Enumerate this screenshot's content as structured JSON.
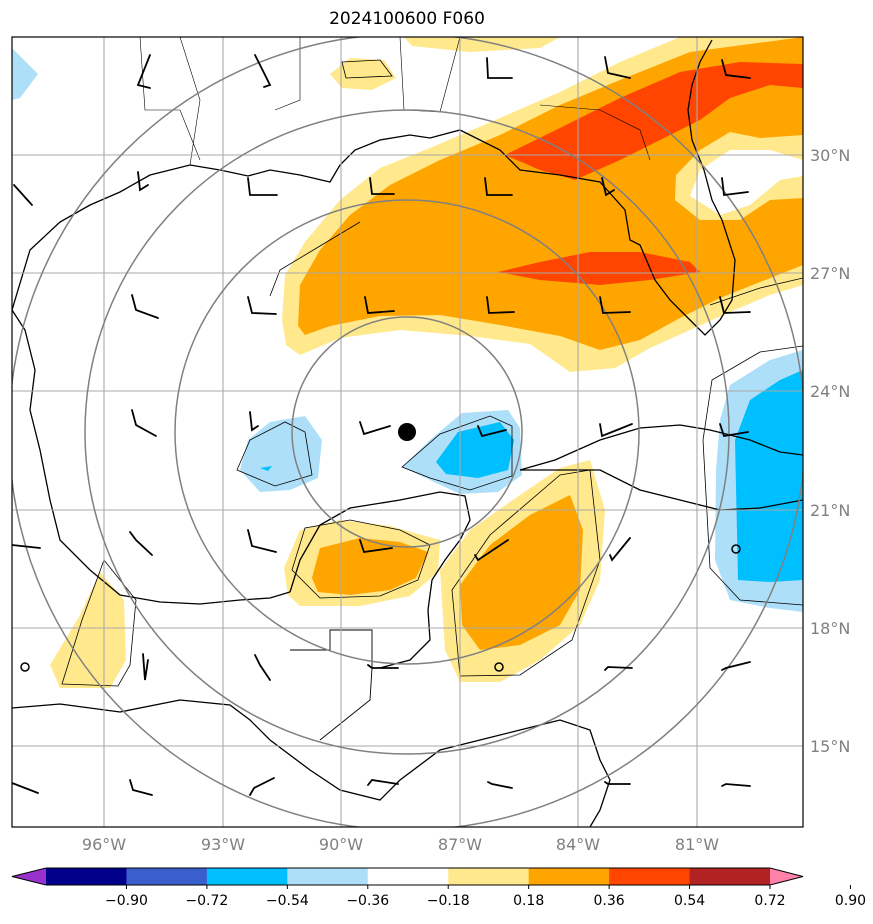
{
  "title": "2024100600 F060",
  "lat_labels": [
    "30°N",
    "27°N",
    "24°N",
    "21°N",
    "18°N",
    "15°N"
  ],
  "lon_labels": [
    "96°W",
    "93°W",
    "90°W",
    "87°W",
    "84°W",
    "81°W"
  ],
  "colorbar": {
    "ticks": [
      "−0.90",
      "−0.72",
      "−0.54",
      "−0.36",
      "−0.18",
      "0.18",
      "0.36",
      "0.54",
      "0.72",
      "0.90"
    ],
    "colors": [
      "#9932CC",
      "#00008B",
      "#3A5FCD",
      "#00BFFF",
      "#ADDFF8",
      "#FFFFFF",
      "#FFE98C",
      "#FFA500",
      "#FF4500",
      "#B22222",
      "#FF82AB"
    ]
  },
  "fill_colors": {
    "light_yellow": "#FFE98C",
    "orange": "#FFA500",
    "red_orange": "#FF4500",
    "light_blue": "#ADDFF8",
    "cyan": "#00BFFF"
  },
  "storm_center_marker": "filled-black-circle",
  "range_ring_color": "#808080",
  "gridline_color": "#A9A9A9"
}
